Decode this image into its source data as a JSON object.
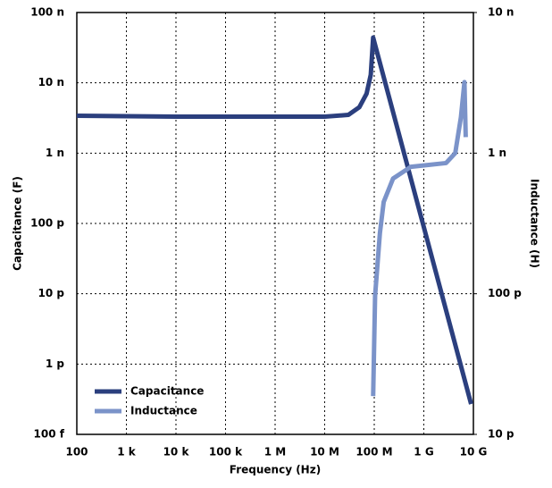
{
  "chart_data": {
    "type": "line",
    "xlabel": "Frequency (Hz)",
    "ylabel": "Capacitance (F)",
    "y2label": "Inductance (H)",
    "xscale": "log",
    "yscale": "log",
    "y2scale": "log",
    "grid": true,
    "legend": "lower left",
    "xlim": [
      100,
      10000000000
    ],
    "xticks": [
      100,
      {
        "value": 1000,
        "label": "1 k"
      },
      {
        "value": 10000,
        "label": "10 k"
      },
      {
        "value": 100000,
        "label": "100 k"
      },
      {
        "value": 1000000,
        "label": "1 M"
      },
      {
        "value": 10000000,
        "label": "10 M"
      },
      {
        "value": 100000000,
        "label": "100 M"
      },
      {
        "value": 1000000000,
        "label": "1 G"
      },
      {
        "value": 10000000000,
        "label": "10 G"
      }
    ],
    "ylim": [
      1e-13,
      1e-07
    ],
    "yticks": [
      {
        "value": 1e-13,
        "label": "100 f"
      },
      {
        "value": 1e-12,
        "label": "1 p"
      },
      {
        "value": 1e-11,
        "label": "10 p"
      },
      {
        "value": 1e-10,
        "label": "100 p"
      },
      {
        "value": 1e-09,
        "label": "1 n"
      },
      {
        "value": 1e-08,
        "label": "10 n"
      },
      {
        "value": 1e-07,
        "label": "100 n"
      }
    ],
    "y2lim": [
      1e-11,
      1e-08
    ],
    "y2ticks": [
      {
        "value": 1e-11,
        "label": "10 p"
      },
      {
        "value": 1e-10,
        "label": "100 p"
      },
      {
        "value": 1e-09,
        "label": "1 n"
      },
      {
        "value": 1e-08,
        "label": "10 n"
      }
    ],
    "series": [
      {
        "name": "Capacitance",
        "color": "#2b3f7e",
        "x": [
          100,
          1000,
          10000,
          100000,
          1000000,
          10000000,
          30000000,
          50000000,
          70000000,
          85000000,
          95000000,
          9000000000
        ],
        "values": [
          3.4e-09,
          3.35e-09,
          3.3e-09,
          3.3e-09,
          3.3e-09,
          3.3e-09,
          3.5e-09,
          4.5e-09,
          7e-09,
          1.3e-08,
          4.4e-08,
          2.7e-13
        ]
      },
      {
        "name": "Inductance",
        "color": "#7b93c9",
        "axis": "y2",
        "x": [
          95000000,
          104000000,
          130000000,
          155000000,
          240000000,
          550000000,
          2800000000,
          4300000000,
          5600000000,
          6600000000,
          7000000000
        ],
        "values": [
          1.87e-11,
          9.7e-11,
          2.7e-10,
          4.5e-10,
          6.6e-10,
          8e-10,
          8.5e-10,
          1e-09,
          1.8e-09,
          3.2e-09,
          1.3e-09
        ]
      }
    ]
  }
}
